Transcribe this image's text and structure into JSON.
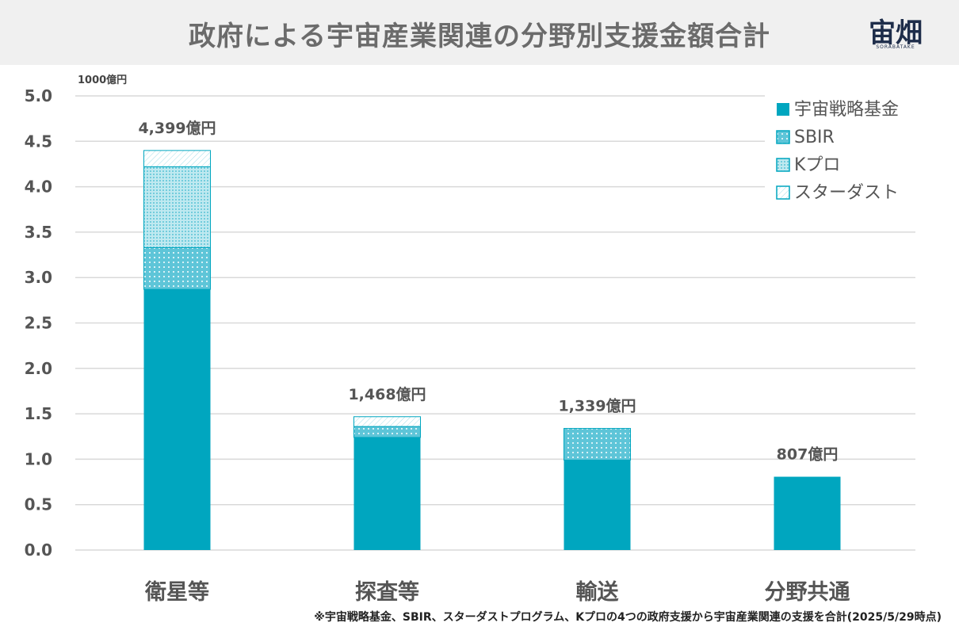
{
  "title": "政府による宇宙産業関連の分野別支援金額合計",
  "logo": {
    "text": "宙畑",
    "sub": "SORABATAKE"
  },
  "footnote": "※宇宙戦略基金、SBIR、スターダストプログラム、Kプロの4つの政府支援から宇宙産業関連の支援を合計(2025/5/29時点)",
  "colors": {
    "base": "#00a6bf",
    "light": "#6fcfdf",
    "grid": "#d9d9d9",
    "header_bg": "#f0f0f0"
  },
  "chart_data": {
    "type": "bar",
    "stacked": true,
    "unit_label": "1000億円",
    "categories": [
      "衛星等",
      "探査等",
      "輸送",
      "分野共通"
    ],
    "ylim": [
      0,
      5.0
    ],
    "yticks": [
      "0.0",
      "0.5",
      "1.0",
      "1.5",
      "2.0",
      "2.5",
      "3.0",
      "3.5",
      "4.0",
      "4.5",
      "5.0"
    ],
    "grid": true,
    "legend": "top-right",
    "series": [
      {
        "name": "宇宙戦略基金",
        "pattern": "solid",
        "values": [
          2.87,
          1.24,
          0.99,
          0.807
        ]
      },
      {
        "name": "SBIR",
        "pattern": "dots",
        "values": [
          0.46,
          0.12,
          0.349,
          0
        ]
      },
      {
        "name": "Kプロ",
        "pattern": "dense-dots",
        "values": [
          0.89,
          0,
          0,
          0
        ]
      },
      {
        "name": "スターダスト",
        "pattern": "hatch",
        "values": [
          0.179,
          0.108,
          0,
          0
        ]
      }
    ],
    "totals": [
      "4,399億円",
      "1,468億円",
      "1,339億円",
      "807億円"
    ]
  }
}
